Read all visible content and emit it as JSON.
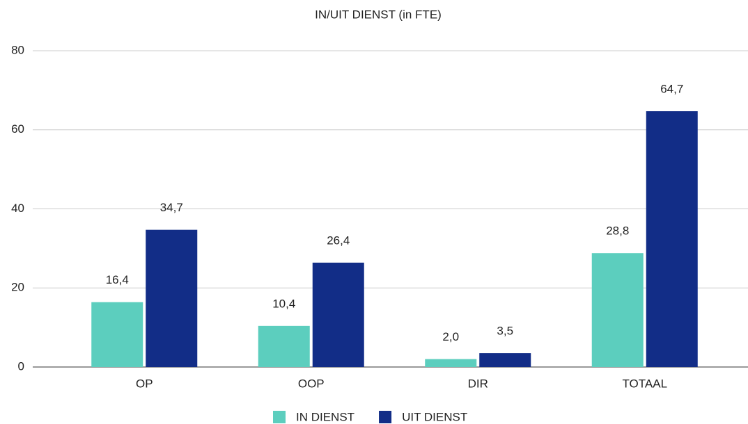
{
  "chart_data": {
    "type": "bar",
    "title": "IN/UIT DIENST (in FTE)",
    "categories": [
      "OP",
      "OOP",
      "DIR",
      "TOTAAL"
    ],
    "series": [
      {
        "name": "IN DIENST",
        "color": "#5ccebe",
        "values": [
          16.4,
          10.4,
          2.0,
          28.8
        ],
        "value_labels": [
          "16,4",
          "10,4",
          "2,0",
          "28,8"
        ]
      },
      {
        "name": "UIT DIENST",
        "color": "#122d87",
        "values": [
          34.7,
          26.4,
          3.5,
          64.7
        ],
        "value_labels": [
          "34,7",
          "26,4",
          "3,5",
          "64,7"
        ]
      }
    ],
    "ylim": [
      0,
      80
    ],
    "yticks": [
      0,
      20,
      40,
      60,
      80
    ],
    "grid": true,
    "legend": "bottom"
  }
}
